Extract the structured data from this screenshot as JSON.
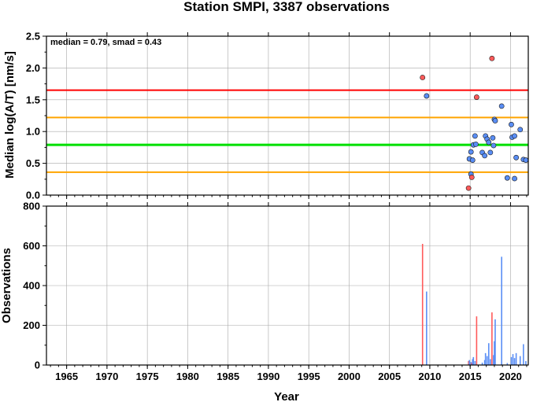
{
  "title": "Station SMPI, 3387 observations",
  "chart_data": [
    {
      "type": "scatter",
      "ylabel": "Median log(A/T) [nm/s]",
      "xlim": [
        1962.5,
        2022.2
      ],
      "ylim": [
        0,
        2.5
      ],
      "yticks": [
        "0.0",
        "0.5",
        "1.0",
        "1.5",
        "2.0",
        "2.5"
      ],
      "grid": true,
      "annotation": "median = 0.79, smad = 0.43",
      "colors": {
        "median": "#00e000",
        "one_smad": "#ffa500",
        "two_smad": "#ff0000",
        "point_normal": "#5a8ef5",
        "point_outlier": "#ff5a5a"
      },
      "reference_lines": [
        {
          "y": 1.65,
          "kind": "two_smad"
        },
        {
          "y": 1.22,
          "kind": "one_smad"
        },
        {
          "y": 0.79,
          "kind": "median"
        },
        {
          "y": 0.36,
          "kind": "one_smad"
        }
      ],
      "points": [
        {
          "x": 2009.1,
          "y": 1.85,
          "kind": "point_outlier"
        },
        {
          "x": 2009.6,
          "y": 1.56,
          "kind": "point_normal"
        },
        {
          "x": 2014.8,
          "y": 0.11,
          "kind": "point_outlier"
        },
        {
          "x": 2014.9,
          "y": 0.57,
          "kind": "point_normal"
        },
        {
          "x": 2015.1,
          "y": 0.68,
          "kind": "point_normal"
        },
        {
          "x": 2015.1,
          "y": 0.33,
          "kind": "point_normal"
        },
        {
          "x": 2015.2,
          "y": 0.28,
          "kind": "point_outlier"
        },
        {
          "x": 2015.3,
          "y": 0.55,
          "kind": "point_normal"
        },
        {
          "x": 2015.4,
          "y": 0.79,
          "kind": "point_normal"
        },
        {
          "x": 2015.6,
          "y": 0.93,
          "kind": "point_normal"
        },
        {
          "x": 2015.7,
          "y": 0.8,
          "kind": "point_normal"
        },
        {
          "x": 2015.8,
          "y": 1.54,
          "kind": "point_outlier"
        },
        {
          "x": 2016.5,
          "y": 0.67,
          "kind": "point_normal"
        },
        {
          "x": 2016.8,
          "y": 0.62,
          "kind": "point_normal"
        },
        {
          "x": 2016.9,
          "y": 0.93,
          "kind": "point_normal"
        },
        {
          "x": 2017.1,
          "y": 0.88,
          "kind": "point_normal"
        },
        {
          "x": 2017.3,
          "y": 0.83,
          "kind": "point_normal"
        },
        {
          "x": 2017.5,
          "y": 0.67,
          "kind": "point_normal"
        },
        {
          "x": 2017.7,
          "y": 2.15,
          "kind": "point_outlier"
        },
        {
          "x": 2017.8,
          "y": 0.9,
          "kind": "point_normal"
        },
        {
          "x": 2017.9,
          "y": 0.78,
          "kind": "point_normal"
        },
        {
          "x": 2018.0,
          "y": 1.19,
          "kind": "point_normal"
        },
        {
          "x": 2018.1,
          "y": 1.17,
          "kind": "point_normal"
        },
        {
          "x": 2018.9,
          "y": 1.4,
          "kind": "point_normal"
        },
        {
          "x": 2019.6,
          "y": 0.27,
          "kind": "point_normal"
        },
        {
          "x": 2020.1,
          "y": 1.11,
          "kind": "point_normal"
        },
        {
          "x": 2020.2,
          "y": 0.91,
          "kind": "point_normal"
        },
        {
          "x": 2020.5,
          "y": 0.93,
          "kind": "point_normal"
        },
        {
          "x": 2020.5,
          "y": 0.26,
          "kind": "point_normal"
        },
        {
          "x": 2020.7,
          "y": 0.59,
          "kind": "point_normal"
        },
        {
          "x": 2021.2,
          "y": 1.03,
          "kind": "point_normal"
        },
        {
          "x": 2021.6,
          "y": 0.56,
          "kind": "point_normal"
        },
        {
          "x": 2021.9,
          "y": 0.55,
          "kind": "point_normal"
        }
      ]
    },
    {
      "type": "bar",
      "xlabel": "Year",
      "ylabel": "Observations",
      "xlim": [
        1962.5,
        2022.2
      ],
      "ylim": [
        0,
        800
      ],
      "xticks": [
        "1965",
        "1970",
        "1975",
        "1980",
        "1985",
        "1990",
        "1995",
        "2000",
        "2005",
        "2010",
        "2015",
        "2020"
      ],
      "yticks": [
        "0",
        "200",
        "400",
        "600",
        "800"
      ],
      "grid": true,
      "bars": [
        {
          "x": 2009.1,
          "y": 610,
          "kind": "point_outlier"
        },
        {
          "x": 2009.6,
          "y": 370,
          "kind": "point_normal"
        },
        {
          "x": 2014.8,
          "y": 20,
          "kind": "point_outlier"
        },
        {
          "x": 2014.9,
          "y": 25,
          "kind": "point_normal"
        },
        {
          "x": 2015.1,
          "y": 15,
          "kind": "point_normal"
        },
        {
          "x": 2015.2,
          "y": 12,
          "kind": "point_outlier"
        },
        {
          "x": 2015.3,
          "y": 30,
          "kind": "point_normal"
        },
        {
          "x": 2015.4,
          "y": 40,
          "kind": "point_normal"
        },
        {
          "x": 2015.6,
          "y": 20,
          "kind": "point_normal"
        },
        {
          "x": 2015.8,
          "y": 245,
          "kind": "point_outlier"
        },
        {
          "x": 2016.5,
          "y": 12,
          "kind": "point_normal"
        },
        {
          "x": 2016.8,
          "y": 25,
          "kind": "point_normal"
        },
        {
          "x": 2016.9,
          "y": 60,
          "kind": "point_normal"
        },
        {
          "x": 2017.1,
          "y": 45,
          "kind": "point_normal"
        },
        {
          "x": 2017.3,
          "y": 110,
          "kind": "point_normal"
        },
        {
          "x": 2017.5,
          "y": 30,
          "kind": "point_normal"
        },
        {
          "x": 2017.7,
          "y": 265,
          "kind": "point_outlier"
        },
        {
          "x": 2017.9,
          "y": 50,
          "kind": "point_normal"
        },
        {
          "x": 2018.0,
          "y": 120,
          "kind": "point_normal"
        },
        {
          "x": 2018.1,
          "y": 230,
          "kind": "point_normal"
        },
        {
          "x": 2018.9,
          "y": 545,
          "kind": "point_normal"
        },
        {
          "x": 2019.6,
          "y": 10,
          "kind": "point_normal"
        },
        {
          "x": 2020.1,
          "y": 40,
          "kind": "point_normal"
        },
        {
          "x": 2020.3,
          "y": 55,
          "kind": "point_normal"
        },
        {
          "x": 2020.5,
          "y": 35,
          "kind": "point_normal"
        },
        {
          "x": 2020.7,
          "y": 60,
          "kind": "point_normal"
        },
        {
          "x": 2021.2,
          "y": 45,
          "kind": "point_normal"
        },
        {
          "x": 2021.6,
          "y": 105,
          "kind": "point_normal"
        },
        {
          "x": 2021.9,
          "y": 20,
          "kind": "point_normal"
        }
      ]
    }
  ]
}
